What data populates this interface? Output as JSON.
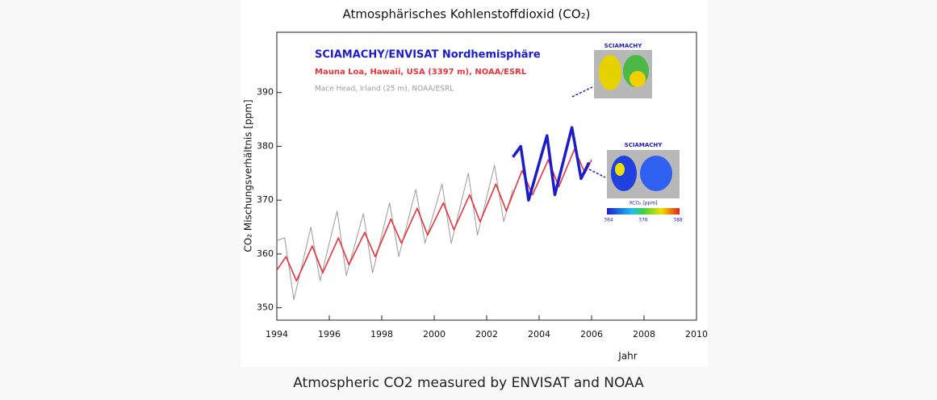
{
  "chart_data": {
    "type": "line",
    "title": "Atmosphärisches Kohlenstoffdioxid (CO₂)",
    "x_label": "Jahr",
    "y_label": "CO₂ Mischungsverhältnis [ppm]",
    "xlim": [
      1994,
      2010
    ],
    "xticks": [
      1994,
      1996,
      1998,
      2000,
      2002,
      2004,
      2006,
      2008,
      2010
    ],
    "ylim": [
      347.7,
      401.2
    ],
    "yticks": [
      350,
      360,
      370,
      380,
      390
    ],
    "series": [
      {
        "name": "SCIAMACHY/ENVISAT Nordhemisphäre",
        "color": "#1c1cc8",
        "x": [
          2003.0,
          2003.3,
          2003.6,
          2004.3,
          2004.6,
          2005.25,
          2005.6,
          2005.9
        ],
        "values": [
          378,
          380,
          370,
          382,
          371,
          383.5,
          374,
          377
        ]
      },
      {
        "name": "Mauna Loa, Hawaii, USA (3397 m), NOAA/ESRL",
        "color": "#e8333a",
        "x": [
          1994.0,
          1994.35,
          1994.75,
          1995.35,
          1995.75,
          1996.35,
          1996.75,
          1997.35,
          1997.75,
          1998.35,
          1998.75,
          1999.35,
          1999.75,
          2000.35,
          2000.75,
          2001.35,
          2001.75,
          2002.35,
          2002.75,
          2003.35,
          2003.75,
          2004.35,
          2004.75,
          2005.35,
          2005.75,
          2006.0
        ],
        "values": [
          357,
          359.5,
          355,
          361.5,
          356.5,
          363,
          358,
          364,
          359.5,
          366.5,
          362,
          368.5,
          363.5,
          369.5,
          364.5,
          371,
          366,
          373,
          368,
          375.5,
          371,
          377.5,
          372.5,
          379.5,
          375,
          377.5
        ]
      },
      {
        "name": "Mace Head, Irland (25 m), NOAA/ESRL",
        "color": "#9a9a9a",
        "x": [
          1994.0,
          1994.3,
          1994.65,
          1995.3,
          1995.65,
          1996.3,
          1996.65,
          1997.3,
          1997.65,
          1998.3,
          1998.65,
          1999.3,
          1999.65,
          2000.3,
          2000.65,
          2001.3,
          2001.65,
          2002.3,
          2002.65,
          2003.0
        ],
        "values": [
          362.5,
          363,
          351.5,
          365,
          355,
          368,
          356,
          367.5,
          356.5,
          369.5,
          359.5,
          372,
          362,
          373,
          362,
          375,
          363.5,
          376.5,
          366,
          372
        ]
      }
    ],
    "inset_labels": [
      "SCIAMACHY",
      "SCIAMACHY"
    ],
    "inset_colorbar": {
      "label": "XCO₂ [ppm]",
      "ticks": [
        364,
        376,
        388
      ]
    }
  },
  "caption": "Atmospheric CO2 measured by ENVISAT and NOAA"
}
